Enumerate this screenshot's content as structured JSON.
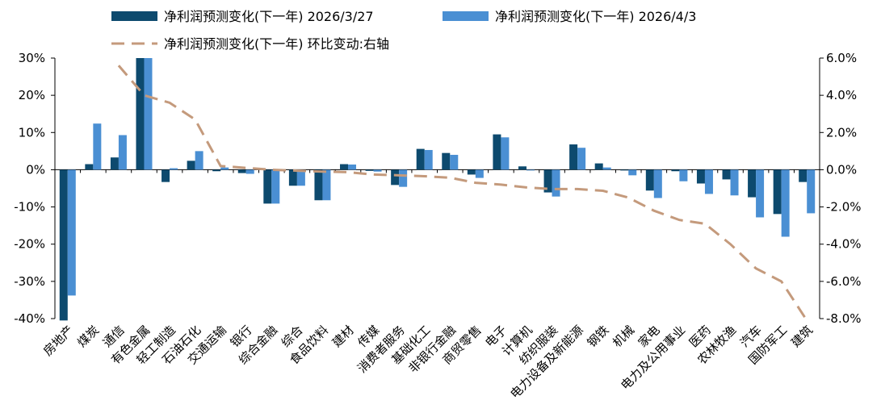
{
  "chart_data": {
    "type": "bar",
    "categories": [
      "房地产",
      "煤炭",
      "通信",
      "有色金属",
      "轻工制造",
      "石油石化",
      "交通运输",
      "银行",
      "综合金融",
      "综合",
      "食品饮料",
      "建材",
      "传媒",
      "消费者服务",
      "基础化工",
      "非银行金融",
      "商贸零售",
      "电子",
      "计算机",
      "纺织服装",
      "电力设备及新能源",
      "钢铁",
      "机械",
      "家电",
      "电力及公用事业",
      "医药",
      "农林牧渔",
      "汽车",
      "国防军工",
      "建筑"
    ],
    "series": [
      {
        "name": "净利润预测变化(下一年) 2026/3/27",
        "type": "bar",
        "color": "#0d4a6e",
        "values": [
          -40.5,
          1.5,
          3.3,
          30,
          -3.3,
          2.4,
          -0.4,
          -0.9,
          -9.1,
          -4.3,
          -8.2,
          1.5,
          -0.3,
          -4.1,
          5.6,
          4.5,
          -1.3,
          9.5,
          0.9,
          -6.1,
          6.8,
          1.7,
          -0.2,
          -5.6,
          -0.4,
          -3.7,
          -2.6,
          -7.4,
          -11.9,
          -3.3
        ]
      },
      {
        "name": "净利润预测变化(下一年) 2026/4/3",
        "type": "bar",
        "color": "#4a8fd3",
        "values": [
          -33.8,
          12.4,
          9.3,
          30,
          0.4,
          5.0,
          0.6,
          -1.1,
          -9.1,
          -4.3,
          -8.2,
          1.4,
          -0.5,
          -4.6,
          5.3,
          4.0,
          -2.2,
          8.7,
          -0.2,
          -7.2,
          5.9,
          0.6,
          -1.5,
          -7.6,
          -3.1,
          -6.5,
          -6.9,
          -12.8,
          -18.0,
          -11.7
        ]
      },
      {
        "name": "净利润预测变化(下一年) 环比变动:右轴",
        "type": "line",
        "axis": "y2",
        "color": "#c49a7c",
        "values": [
          null,
          null,
          5.6,
          4.0,
          3.6,
          2.7,
          0.2,
          0.1,
          0.0,
          -0.05,
          -0.1,
          -0.13,
          -0.26,
          -0.3,
          -0.35,
          -0.43,
          -0.7,
          -0.8,
          -0.95,
          -1.04,
          -1.04,
          -1.13,
          -1.5,
          -2.2,
          -2.7,
          -2.9,
          -4.0,
          -5.3,
          -6.0,
          -8.1
        ]
      }
    ],
    "ylim": [
      -40,
      30
    ],
    "yticks": [
      {
        "value": -40,
        "label": "-40%"
      },
      {
        "value": -30,
        "label": "-30%"
      },
      {
        "value": -20,
        "label": "-20%"
      },
      {
        "value": -10,
        "label": "-10%"
      },
      {
        "value": 0,
        "label": "0%"
      },
      {
        "value": 10,
        "label": "10%"
      },
      {
        "value": 20,
        "label": "20%"
      },
      {
        "value": 30,
        "label": "30%"
      }
    ],
    "y2lim": [
      -8,
      6
    ],
    "y2ticks": [
      {
        "value": -8,
        "label": "-8.0%"
      },
      {
        "value": -6,
        "label": "-6.0%"
      },
      {
        "value": -4,
        "label": "-4.0%"
      },
      {
        "value": -2,
        "label": "-2.0%"
      },
      {
        "value": 0,
        "label": "0.0%"
      },
      {
        "value": 2,
        "label": "2.0%"
      },
      {
        "value": 4,
        "label": "4.0%"
      },
      {
        "value": 6,
        "label": "6.0%"
      }
    ]
  }
}
